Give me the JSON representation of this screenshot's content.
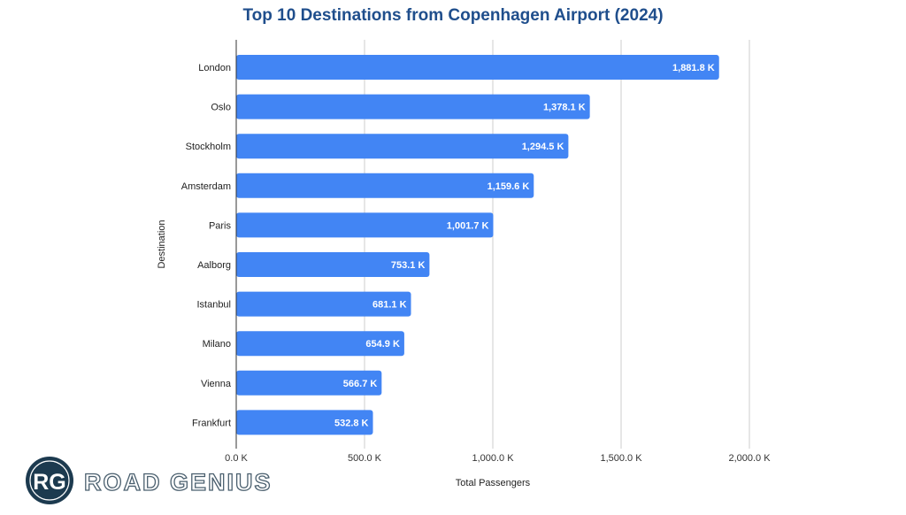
{
  "chart_data": {
    "type": "bar",
    "orientation": "horizontal",
    "title": "Top 10 Destinations from Copenhagen Airport (2024)",
    "xlabel": "Total Passengers",
    "ylabel": "Destination",
    "categories": [
      "London",
      "Oslo",
      "Stockholm",
      "Amsterdam",
      "Paris",
      "Aalborg",
      "Istanbul",
      "Milano",
      "Vienna",
      "Frankfurt"
    ],
    "values": [
      1881.8,
      1378.1,
      1294.5,
      1159.6,
      1001.7,
      753.1,
      681.1,
      654.9,
      566.7,
      532.8
    ],
    "value_labels": [
      "1,881.8 K",
      "1,378.1 K",
      "1,294.5 K",
      "1,159.6 K",
      "1,001.7 K",
      "753.1 K",
      "681.1 K",
      "654.9 K",
      "566.7 K",
      "532.8 K"
    ],
    "unit": "K",
    "xlim": [
      0,
      2000
    ],
    "xticks": [
      0,
      500,
      1000,
      1500,
      2000
    ],
    "xtick_labels": [
      "0.0 K",
      "500.0 K",
      "1,000.0 K",
      "1,500.0 K",
      "2,000.0 K"
    ],
    "grid": true,
    "bar_color": "#4285f4"
  },
  "logo": {
    "initials": "RG",
    "text": "ROAD GENIUS"
  }
}
